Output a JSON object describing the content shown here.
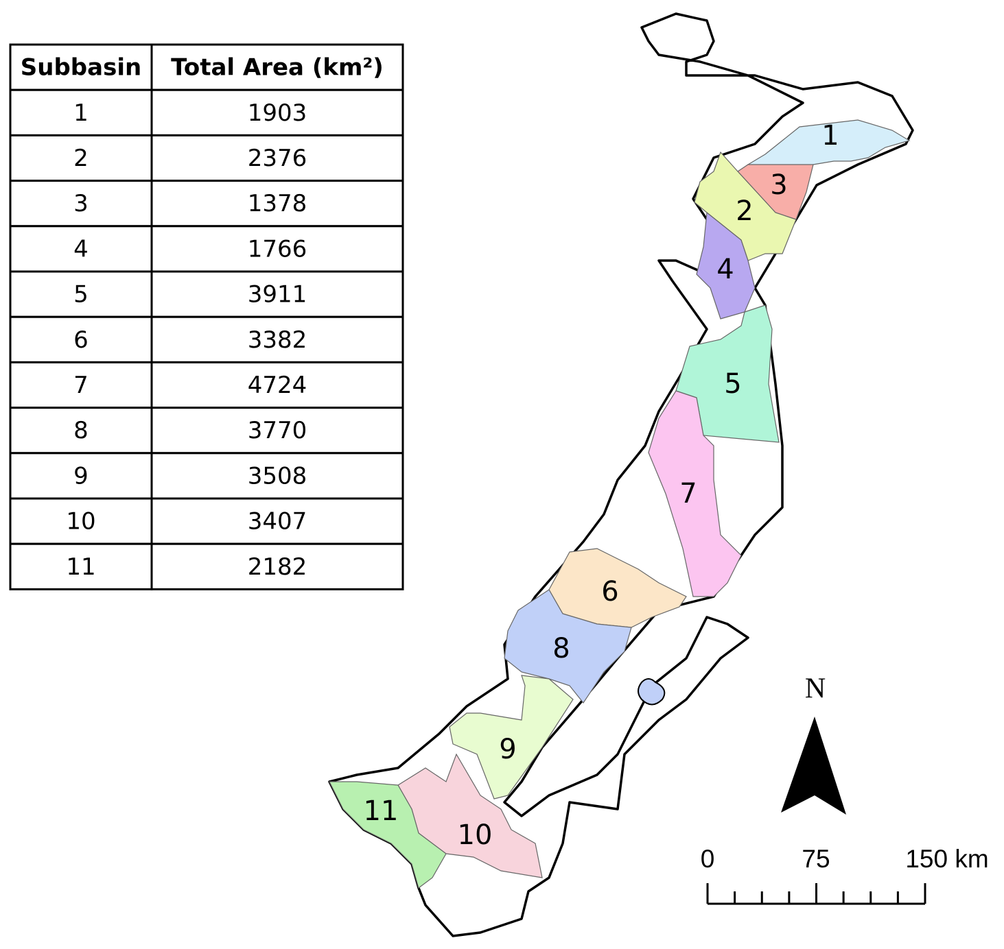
{
  "table": {
    "headers": [
      "Subbasin",
      "Total Area (km²)"
    ],
    "rows": [
      [
        1,
        1903
      ],
      [
        2,
        2376
      ],
      [
        3,
        1378
      ],
      [
        4,
        1766
      ],
      [
        5,
        3911
      ],
      [
        6,
        3382
      ],
      [
        7,
        4724
      ],
      [
        8,
        3770
      ],
      [
        9,
        3508
      ],
      [
        10,
        3407
      ],
      [
        11,
        2182
      ]
    ]
  },
  "map": {
    "labels": [
      "1",
      "2",
      "3",
      "4",
      "5",
      "6",
      "7",
      "8",
      "9",
      "10",
      "11"
    ]
  },
  "north_label": "N",
  "scale_bar": {
    "labels": [
      "0",
      "75",
      "150 km"
    ]
  }
}
